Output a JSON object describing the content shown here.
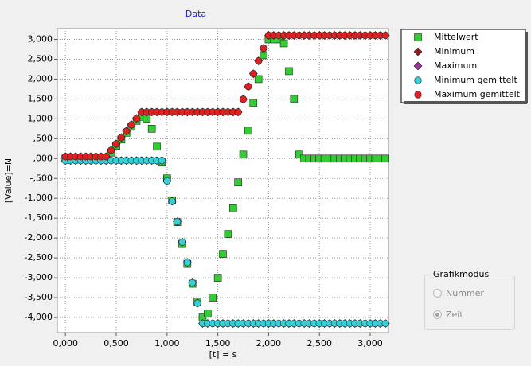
{
  "chart_data": {
    "type": "scatter",
    "title": "Data",
    "x_label": "[t] = s",
    "y_label": "[Value]=N",
    "xlim": [
      -0.08,
      3.18
    ],
    "ylim": [
      -4380,
      3270
    ],
    "grid": true,
    "legend": "top-right",
    "xticks": [
      {
        "value": 0,
        "label": "0,000"
      },
      {
        "value": 0.5,
        "label": "0,500"
      },
      {
        "value": 1,
        "label": "1,000"
      },
      {
        "value": 1.5,
        "label": "1,500"
      },
      {
        "value": 2,
        "label": "2,000"
      },
      {
        "value": 2.5,
        "label": "2,500"
      },
      {
        "value": 3,
        "label": "3,000"
      }
    ],
    "yticks": [
      {
        "value": 3000,
        "label": "3,000"
      },
      {
        "value": 2500,
        "label": "2,500"
      },
      {
        "value": 2000,
        "label": "2,000"
      },
      {
        "value": 1500,
        "label": "1,500"
      },
      {
        "value": 1000,
        "label": "1,000"
      },
      {
        "value": 500,
        "label": ",500"
      },
      {
        "value": 0,
        "label": ",000"
      },
      {
        "value": -500,
        "label": "-,500"
      },
      {
        "value": -1000,
        "label": "-1,000"
      },
      {
        "value": -1500,
        "label": "-1,500"
      },
      {
        "value": -2000,
        "label": "-2,000"
      },
      {
        "value": -2500,
        "label": "-2,500"
      },
      {
        "value": -3000,
        "label": "-3,000"
      },
      {
        "value": -3500,
        "label": "-3,500"
      },
      {
        "value": -4000,
        "label": "-4,000"
      }
    ],
    "x": [
      0,
      0.05,
      0.1,
      0.15,
      0.2,
      0.25,
      0.3,
      0.35,
      0.4,
      0.45,
      0.5,
      0.55,
      0.6,
      0.65,
      0.7,
      0.75,
      0.8,
      0.85,
      0.9,
      0.95,
      1,
      1.05,
      1.1,
      1.15,
      1.2,
      1.25,
      1.3,
      1.35,
      1.4,
      1.45,
      1.5,
      1.55,
      1.6,
      1.65,
      1.7,
      1.75,
      1.8,
      1.85,
      1.9,
      1.95,
      2,
      2.05,
      2.1,
      2.15,
      2.2,
      2.25,
      2.3,
      2.35,
      2.4,
      2.45,
      2.5,
      2.55,
      2.6,
      2.65,
      2.7,
      2.75,
      2.8,
      2.85,
      2.9,
      2.95,
      3,
      3.05,
      3.1,
      3.15
    ],
    "series": [
      {
        "name": "Mittelwert",
        "color": "#33cc33",
        "marker": "square",
        "values": [
          0,
          0,
          0,
          0,
          0,
          0,
          0,
          0,
          0,
          150,
          320,
          480,
          650,
          800,
          950,
          1050,
          1000,
          750,
          300,
          -100,
          -500,
          -1050,
          -1600,
          -2150,
          -2650,
          -3150,
          -3600,
          -4000,
          -3900,
          -3500,
          -3000,
          -2400,
          -1900,
          -1250,
          -600,
          100,
          700,
          1400,
          2000,
          2600,
          3000,
          3000,
          3000,
          2900,
          2200,
          1500,
          100,
          0,
          0,
          0,
          0,
          0,
          0,
          0,
          0,
          0,
          0,
          0,
          0,
          0,
          0,
          0,
          0,
          0
        ]
      },
      {
        "name": "Minimum",
        "color": "#8b1c1c",
        "marker": "diamond",
        "values": [
          -50,
          -50,
          -50,
          -50,
          -50,
          -50,
          -50,
          -50,
          -50,
          -50,
          -50,
          -50,
          -50,
          -50,
          -50,
          -50,
          -50,
          -50,
          -50,
          -50,
          -563,
          -1075,
          -1588,
          -2100,
          -2613,
          -3125,
          -3638,
          -4150,
          -4150,
          -4150,
          -4150,
          -4150,
          -4150,
          -4150,
          -4150,
          -4150,
          -4150,
          -4150,
          -4150,
          -4150,
          -4150,
          -4150,
          -4150,
          -4150,
          -4150,
          -4150,
          -4150,
          -4150,
          -4150,
          -4150,
          -4150,
          -4150,
          -4150,
          -4150,
          -4150,
          -4150,
          -4150,
          -4150,
          -4150,
          -4150,
          -4150,
          -4150,
          -4150,
          -4150
        ]
      },
      {
        "name": "Maximum",
        "color": "#a030a0",
        "marker": "diamond",
        "values": [
          50,
          50,
          50,
          50,
          50,
          50,
          50,
          50,
          50,
          210,
          370,
          530,
          690,
          850,
          1010,
          1170,
          1170,
          1170,
          1170,
          1170,
          1170,
          1170,
          1170,
          1170,
          1170,
          1170,
          1170,
          1170,
          1170,
          1170,
          1170,
          1170,
          1170,
          1170,
          1170,
          1492,
          1813,
          2135,
          2457,
          2778,
          3100,
          3100,
          3100,
          3100,
          3100,
          3100,
          3100,
          3100,
          3100,
          3100,
          3100,
          3100,
          3100,
          3100,
          3100,
          3100,
          3100,
          3100,
          3100,
          3100,
          3100,
          3100,
          3100,
          3100
        ]
      },
      {
        "name": "Minimum gemittelt",
        "color": "#33d0d8",
        "marker": "circle",
        "values": [
          -50,
          -50,
          -50,
          -50,
          -50,
          -50,
          -50,
          -50,
          -50,
          -50,
          -50,
          -50,
          -50,
          -50,
          -50,
          -50,
          -50,
          -50,
          -50,
          -50,
          -563,
          -1075,
          -1588,
          -2100,
          -2613,
          -3125,
          -3638,
          -4150,
          -4150,
          -4150,
          -4150,
          -4150,
          -4150,
          -4150,
          -4150,
          -4150,
          -4150,
          -4150,
          -4150,
          -4150,
          -4150,
          -4150,
          -4150,
          -4150,
          -4150,
          -4150,
          -4150,
          -4150,
          -4150,
          -4150,
          -4150,
          -4150,
          -4150,
          -4150,
          -4150,
          -4150,
          -4150,
          -4150,
          -4150,
          -4150,
          -4150,
          -4150,
          -4150,
          -4150
        ]
      },
      {
        "name": "Maximum gemittelt",
        "color": "#e02020",
        "marker": "circle",
        "values": [
          50,
          50,
          50,
          50,
          50,
          50,
          50,
          50,
          50,
          210,
          370,
          530,
          690,
          850,
          1010,
          1170,
          1170,
          1170,
          1170,
          1170,
          1170,
          1170,
          1170,
          1170,
          1170,
          1170,
          1170,
          1170,
          1170,
          1170,
          1170,
          1170,
          1170,
          1170,
          1170,
          1492,
          1813,
          2135,
          2457,
          2778,
          3100,
          3100,
          3100,
          3100,
          3100,
          3100,
          3100,
          3100,
          3100,
          3100,
          3100,
          3100,
          3100,
          3100,
          3100,
          3100,
          3100,
          3100,
          3100,
          3100,
          3100,
          3100,
          3100,
          3100
        ]
      }
    ]
  },
  "controls": {
    "group_title": "Grafikmodus",
    "options": [
      "Nummer",
      "Zeit"
    ],
    "selected": "Zeit"
  }
}
